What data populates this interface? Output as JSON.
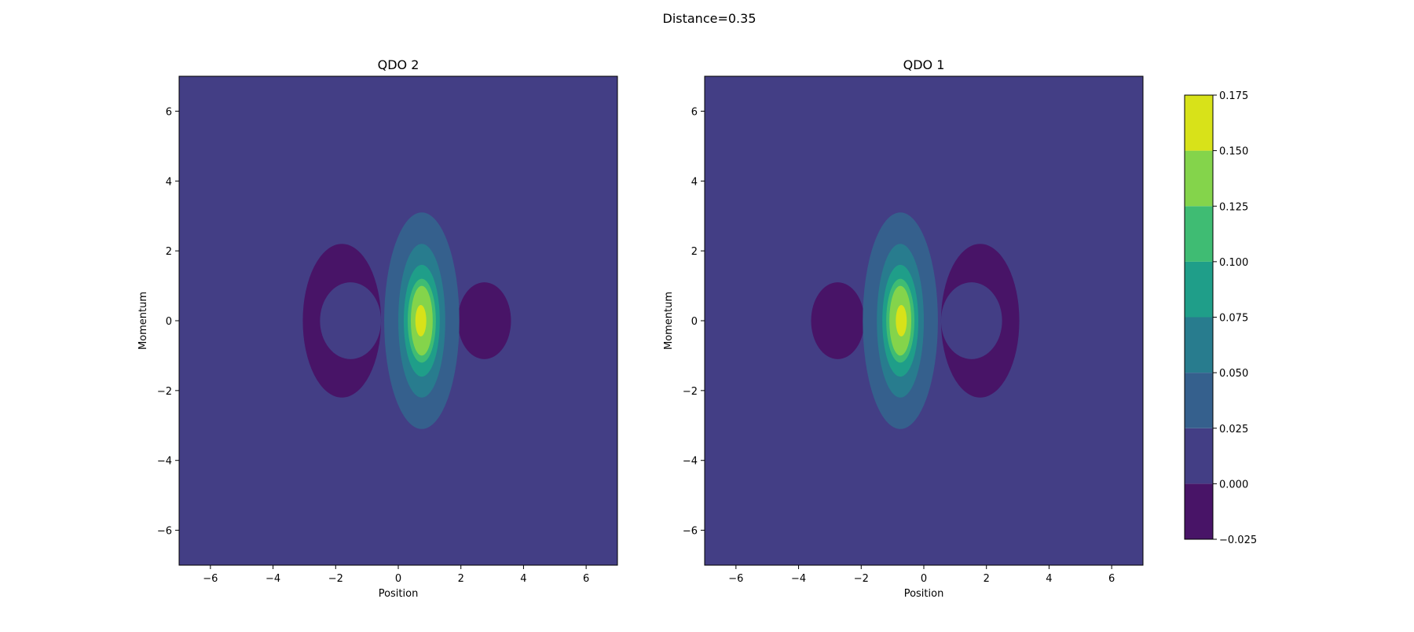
{
  "figure": {
    "title": "Distance=0.35"
  },
  "chart_data": [
    {
      "type": "heatmap",
      "subtype": "filled-contour",
      "title": "QDO 2",
      "xlabel": "Position",
      "ylabel": "Momentum",
      "xlim": [
        -7,
        7
      ],
      "ylim": [
        -7,
        7
      ],
      "xticks": [
        -6,
        -4,
        -2,
        0,
        2,
        4,
        6
      ],
      "yticks": [
        -6,
        -4,
        -2,
        0,
        2,
        4,
        6
      ],
      "xtick_labels": [
        "−6",
        "−4",
        "−2",
        "0",
        "2",
        "4",
        "6"
      ],
      "ytick_labels": [
        "−6",
        "−4",
        "−2",
        "0",
        "2",
        "4",
        "6"
      ],
      "grid": false,
      "contour_regions": [
        {
          "level_range": [
            -0.025,
            0.0
          ],
          "desc": "large crescent lobe",
          "center": [
            -1.8,
            0.0
          ],
          "x_extent": [
            -3.1,
            -0.6
          ],
          "y_extent": [
            -2.2,
            2.2
          ]
        },
        {
          "level_range": [
            -0.025,
            0.0
          ],
          "desc": "small lobe",
          "center": [
            2.75,
            0.0
          ],
          "x_extent": [
            1.9,
            3.6
          ],
          "y_extent": [
            -1.1,
            1.1
          ]
        },
        {
          "level_range": [
            0.025,
            0.05
          ],
          "center": [
            0.75,
            0.0
          ],
          "x_extent": [
            -0.5,
            1.9
          ],
          "y_extent": [
            -3.1,
            3.1
          ]
        },
        {
          "level_range": [
            0.05,
            0.075
          ],
          "center": [
            0.75,
            0.0
          ],
          "x_extent": [
            0.0,
            1.5
          ],
          "y_extent": [
            -2.2,
            2.2
          ]
        },
        {
          "level_range": [
            0.075,
            0.1
          ],
          "center": [
            0.75,
            0.0
          ],
          "x_extent": [
            0.15,
            1.3
          ],
          "y_extent": [
            -1.6,
            1.6
          ]
        },
        {
          "level_range": [
            0.1,
            0.125
          ],
          "center": [
            0.75,
            0.0
          ],
          "x_extent": [
            0.3,
            1.2
          ],
          "y_extent": [
            -1.2,
            1.2
          ]
        },
        {
          "level_range": [
            0.125,
            0.15
          ],
          "center": [
            0.75,
            0.0
          ],
          "x_extent": [
            0.4,
            1.1
          ],
          "y_extent": [
            -1.0,
            1.0
          ]
        },
        {
          "level_range": [
            0.15,
            0.175
          ],
          "center": [
            0.72,
            0.0
          ],
          "x_extent": [
            0.55,
            0.9
          ],
          "y_extent": [
            -0.45,
            0.45
          ]
        }
      ]
    },
    {
      "type": "heatmap",
      "subtype": "filled-contour",
      "title": "QDO 1",
      "xlabel": "Position",
      "ylabel": "Momentum",
      "xlim": [
        -7,
        7
      ],
      "ylim": [
        -7,
        7
      ],
      "xticks": [
        -6,
        -4,
        -2,
        0,
        2,
        4,
        6
      ],
      "yticks": [
        -6,
        -4,
        -2,
        0,
        2,
        4,
        6
      ],
      "xtick_labels": [
        "−6",
        "−4",
        "−2",
        "0",
        "2",
        "4",
        "6"
      ],
      "ytick_labels": [
        "−6",
        "−4",
        "−2",
        "0",
        "2",
        "4",
        "6"
      ],
      "grid": false,
      "contour_regions": [
        {
          "level_range": [
            -0.025,
            0.0
          ],
          "desc": "large crescent lobe",
          "center": [
            1.8,
            0.0
          ],
          "x_extent": [
            0.6,
            3.1
          ],
          "y_extent": [
            -2.2,
            2.2
          ]
        },
        {
          "level_range": [
            -0.025,
            0.0
          ],
          "desc": "small lobe",
          "center": [
            -2.75,
            0.0
          ],
          "x_extent": [
            -3.6,
            -1.9
          ],
          "y_extent": [
            -1.1,
            1.1
          ]
        },
        {
          "level_range": [
            0.025,
            0.05
          ],
          "center": [
            -0.75,
            0.0
          ],
          "x_extent": [
            -1.9,
            0.5
          ],
          "y_extent": [
            -3.1,
            3.1
          ]
        },
        {
          "level_range": [
            0.05,
            0.075
          ],
          "center": [
            -0.75,
            0.0
          ],
          "x_extent": [
            -1.5,
            0.0
          ],
          "y_extent": [
            -2.2,
            2.2
          ]
        },
        {
          "level_range": [
            0.075,
            0.1
          ],
          "center": [
            -0.75,
            0.0
          ],
          "x_extent": [
            -1.3,
            -0.15
          ],
          "y_extent": [
            -1.6,
            1.6
          ]
        },
        {
          "level_range": [
            0.1,
            0.125
          ],
          "center": [
            -0.75,
            0.0
          ],
          "x_extent": [
            -1.2,
            -0.3
          ],
          "y_extent": [
            -1.2,
            1.2
          ]
        },
        {
          "level_range": [
            0.125,
            0.15
          ],
          "center": [
            -0.75,
            0.0
          ],
          "x_extent": [
            -1.1,
            -0.4
          ],
          "y_extent": [
            -1.0,
            1.0
          ]
        },
        {
          "level_range": [
            0.15,
            0.175
          ],
          "center": [
            -0.72,
            0.0
          ],
          "x_extent": [
            -0.9,
            -0.55
          ],
          "y_extent": [
            -0.45,
            0.45
          ]
        }
      ]
    }
  ],
  "colorbar": {
    "levels": [
      -0.025,
      0.0,
      0.025,
      0.05,
      0.075,
      0.1,
      0.125,
      0.15,
      0.175
    ],
    "tick_labels": [
      "−0.025",
      "0.000",
      "0.025",
      "0.050",
      "0.075",
      "0.100",
      "0.125",
      "0.150",
      "0.175"
    ],
    "colors": [
      "#481467",
      "#433e85",
      "#35608d",
      "#287c8e",
      "#1f9e89",
      "#3fbc73",
      "#84d44b",
      "#d8e219"
    ],
    "background_level_color": "#433e85"
  }
}
